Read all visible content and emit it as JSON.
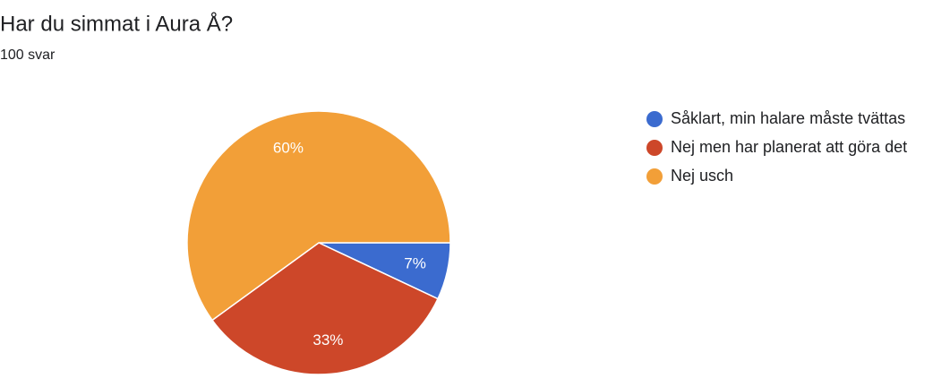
{
  "chart_data": {
    "type": "pie",
    "title": "Har du simmat i Aura Å?",
    "subtitle": "100 svar",
    "categories": [
      "Såklart, min halare måste tvättas",
      "Nej men har planerat att göra det",
      "Nej usch"
    ],
    "values": [
      7,
      33,
      60
    ],
    "value_labels": [
      "7%",
      "33%",
      "60%"
    ],
    "colors": [
      "#3b6bcf",
      "#cd4729",
      "#f29f38"
    ]
  }
}
